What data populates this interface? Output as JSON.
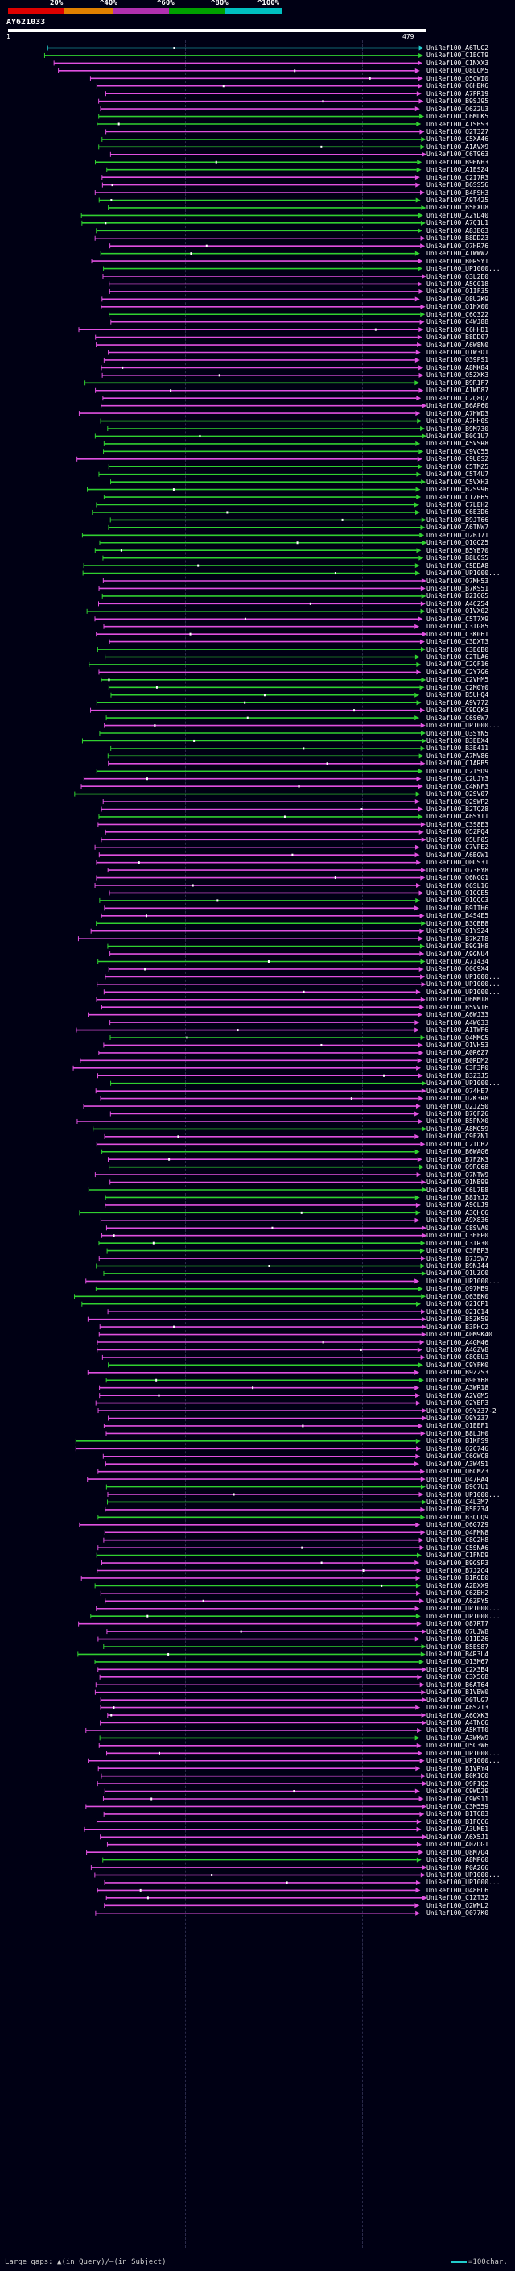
{
  "legend": {
    "labels": [
      "20%",
      "^40%",
      "^60%",
      "^80%",
      "^100%"
    ],
    "colors": [
      "#dd0000",
      "#e08000",
      "#b030b0",
      "#00a000",
      "#00c0c0"
    ]
  },
  "query": {
    "id": "AY621033",
    "start": "1",
    "end": "479"
  },
  "colors": {
    "magenta": "#e050e0",
    "green": "#30d030",
    "cyan": "#22cccc"
  },
  "hits": [
    "UniRef100_A6TUG2",
    "UniRef100_C1ECT9",
    "UniRef100_C1NXX3",
    "UniRef100_Q8LCM5",
    "UniRef100_Q5CWI0",
    "UniRef100_Q6HBK6",
    "UniRef100_A7PR19",
    "UniRef100_B9SJ95",
    "UniRef100_Q6Z2U3",
    "UniRef100_C6MLK5",
    "UniRef100_A1SBS3",
    "UniRef100_Q2T327",
    "UniRef100_C5XA46",
    "UniRef100_A1AVX9",
    "UniRef100_C6T963",
    "UniRef100_B9HNH3",
    "UniRef100_A1ESZ4",
    "UniRef100_C2I7R3",
    "UniRef100_B6SS56",
    "UniRef100_B4FSH3",
    "UniRef100_A9T425",
    "UniRef100_B5EXU8",
    "UniRef100_A2YD40",
    "UniRef100_A7Q1L1",
    "UniRef100_A8JBG3",
    "UniRef100_B8DD23",
    "UniRef100_Q7HR76",
    "UniRef100_A1WWW2",
    "UniRef100_B0RSY1",
    "UniRef100_UP1000...",
    "UniRef100_Q3L2E0",
    "UniRef100_A5G018",
    "UniRef100_Q1IF35",
    "UniRef100_Q8U2K9",
    "UniRef100_Q1HX00",
    "UniRef100_C6Q322",
    "UniRef100_C4WJ88",
    "UniRef100_C6HHD1",
    "UniRef100_B8DD07",
    "UniRef100_A6W8N0",
    "UniRef100_Q1W3D1",
    "UniRef100_Q39PS1",
    "UniRef100_A8MK84",
    "UniRef100_Q5ZXK3",
    "UniRef100_B9R1F7",
    "UniRef100_A1WD87",
    "UniRef100_C2Q8Q7",
    "UniRef100_B6AP60",
    "UniRef100_A7HWD3",
    "UniRef100_A7HH0S",
    "UniRef100_B9M730",
    "UniRef100_B0C1U7",
    "UniRef100_A5VSR8",
    "UniRef100_C9VC55",
    "UniRef100_C9U8S2",
    "UniRef100_C5TMZ5",
    "UniRef100_C5T4U7",
    "UniRef100_C5VXH3",
    "UniRef100_B2S996",
    "UniRef100_C1ZB65",
    "UniRef100_C7LEH2",
    "UniRef100_C6E3D6",
    "UniRef100_B9JT66",
    "UniRef100_A6TNW7",
    "UniRef100_Q2B171",
    "UniRef100_Q1GQZ5",
    "UniRef100_B5YB70",
    "UniRef100_B8LCS5",
    "UniRef100_C5DDA8",
    "UniRef100_UP1000...",
    "UniRef100_Q7MH53",
    "UniRef100_B7KS51",
    "UniRef100_B2I6G5",
    "UniRef100_A4C254",
    "UniRef100_Q1VX02",
    "UniRef100_C5T7X9",
    "UniRef100_C3IG85",
    "UniRef100_C3K061",
    "UniRef100_C3DXT3",
    "UniRef100_C3E0B0",
    "UniRef100_C2TLA6",
    "UniRef100_C2QF16",
    "UniRef100_C2Y7G6",
    "UniRef100_C2VHM5",
    "UniRef100_C2M0Y0",
    "UniRef100_B5UHQ4",
    "UniRef100_A9V772",
    "UniRef100_C9DQK3",
    "UniRef100_C6S6W7",
    "UniRef100_UP1000...",
    "UniRef100_Q3SYN5",
    "UniRef100_B3EEX4",
    "UniRef100_B3E411",
    "UniRef100_A7MV86",
    "UniRef100_C1ARB5",
    "UniRef100_C2T5D9",
    "UniRef100_C2UJY3",
    "UniRef100_C4KNF3",
    "UniRef100_Q2SV07",
    "UniRef100_Q2SWP2",
    "UniRef100_B2TQZ8",
    "UniRef100_A6SYI1",
    "UniRef100_C3S8E3",
    "UniRef100_Q5ZPQ4",
    "UniRef100_Q5UF05",
    "UniRef100_C7VPE2",
    "UniRef100_A6BGW1",
    "UniRef100_Q0DS31",
    "UniRef100_Q73BY8",
    "UniRef100_Q6NCG1",
    "UniRef100_Q6SL16",
    "UniRef100_Q1GGE5",
    "UniRef100_Q1QQC3",
    "UniRef100_B9ITH6",
    "UniRef100_B4S4E5",
    "UniRef100_B3QBB8",
    "UniRef100_Q1YS24",
    "UniRef100_B7KZT8",
    "UniRef100_B9G1H8",
    "UniRef100_A9GNU4",
    "UniRef100_A7I434",
    "UniRef100_Q0C9X4",
    "UniRef100_UP1000...",
    "UniRef100_UP1000...",
    "UniRef100_UP1000...",
    "UniRef100_Q6MMI8",
    "UniRef100_B5VVI6",
    "UniRef100_A6WJ33",
    "UniRef100_A4WG33",
    "UniRef100_A1TWF6",
    "UniRef100_Q4MMG5",
    "UniRef100_Q1VH53",
    "UniRef100_A0R6Z7",
    "UniRef100_B0RDM2",
    "UniRef100_C3F3P0",
    "UniRef100_B3Z3J5",
    "UniRef100_UP1000...",
    "UniRef100_Q74HE7",
    "UniRef100_Q2K3R8",
    "UniRef100_Q2JZ50",
    "UniRef100_B7QF26",
    "UniRef100_B5PNX0",
    "UniRef100_A8MG59",
    "UniRef100_C9FZN1",
    "UniRef100_C2TDB2",
    "UniRef100_B6WAG6",
    "UniRef100_B7FZK3",
    "UniRef100_Q9RG68",
    "UniRef100_Q7NTW9",
    "UniRef100_Q1NB99",
    "UniRef100_C6L7E8",
    "UniRef100_B8IYJ2",
    "UniRef100_A9CLJ9",
    "UniRef100_A3QHC6",
    "UniRef100_A9X836",
    "UniRef100_C8SVA0",
    "UniRef100_C3HFP0",
    "UniRef100_C3IR30",
    "UniRef100_C3FBP3",
    "UniRef100_B7J5W7",
    "UniRef100_B9NJ44",
    "UniRef100_Q1UZC0",
    "UniRef100_UP1000...",
    "UniRef100_Q97MB9",
    "UniRef100_Q63EK0",
    "UniRef100_Q21CP1",
    "UniRef100_Q21C14",
    "UniRef100_B5ZK59",
    "UniRef100_B3PHC2",
    "UniRef100_A0M9K40",
    "UniRef100_A4GM46",
    "UniRef100_A4GZV8",
    "UniRef100_C8QEU3",
    "UniRef100_C9YFK0",
    "UniRef100_B9Z2S3",
    "UniRef100_B9EY68",
    "UniRef100_A3WR18",
    "UniRef100_A2V0M5",
    "UniRef100_Q2YBP3",
    "UniRef100_Q9YZ37-2",
    "UniRef100_Q9YZ37",
    "UniRef100_Q1EEF1",
    "UniRef100_B8LJH0",
    "UniRef100_B1KFS9",
    "UniRef100_Q2C746",
    "UniRef100_C6GWC8",
    "UniRef100_A3W451",
    "UniRef100_Q6CMZ3",
    "UniRef100_Q47RA4",
    "UniRef100_B9C7U1",
    "UniRef100_UP1000...",
    "UniRef100_C4L3M7",
    "UniRef100_B5EZ34",
    "UniRef100_B3QUQ9",
    "UniRef100_Q6G7Z9",
    "UniRef100_Q4FMN8",
    "UniRef100_C8G2H8",
    "UniRef100_C5SNA6",
    "UniRef100_C1FND9",
    "UniRef100_B9GSP3",
    "UniRef100_B7J2C4",
    "UniRef100_B1ROE0",
    "UniRef100_A2BXX9",
    "UniRef100_C6ZBH2",
    "UniRef100_A6ZPY5",
    "UniRef100_UP1000...",
    "UniRef100_UP1000...",
    "UniRef100_Q87RT7",
    "UniRef100_Q7UJW8",
    "UniRef100_Q11DZ6",
    "UniRef100_B5ES87",
    "UniRef100_B4R3L4",
    "UniRef100_Q13M67",
    "UniRef100_C2X3B4",
    "UniRef100_C3X568",
    "UniRef100_B6AT64",
    "UniRef100_B1VBW0",
    "UniRef100_Q0TUG7",
    "UniRef100_A6S2T3",
    "UniRef100_A6QXK3",
    "UniRef100_A4TNC6",
    "UniRef100_A5KTT0",
    "UniRef100_A3WKW9",
    "UniRef100_Q5C3W6",
    "UniRef100_UP1000...",
    "UniRef100_UP1000...",
    "UniRef100_B1VRY4",
    "UniRef100_B0K1G0",
    "UniRef100_Q9F1Q2",
    "UniRef100_C9WD29",
    "UniRef100_C9WS11",
    "UniRef100_C3M559",
    "UniRef100_B1TC83",
    "UniRef100_B1FQC6",
    "UniRef100_A3UME1",
    "UniRef100_A6X5J1",
    "UniRef100_A0ZDG1",
    "UniRef100_Q8M7Q4",
    "UniRef100_A8MP60",
    "UniRef100_P0A266",
    "UniRef100_UP1000...",
    "UniRef100_UP1000...",
    "UniRef100_Q48BL6",
    "UniRef100_C1ZT32",
    "UniRef100_Q2WML2",
    "UniRef100_Q077K0"
  ],
  "footer": {
    "text": "Large gaps: ▲(in Query)/—(in Subject)",
    "scale": "=100char."
  }
}
